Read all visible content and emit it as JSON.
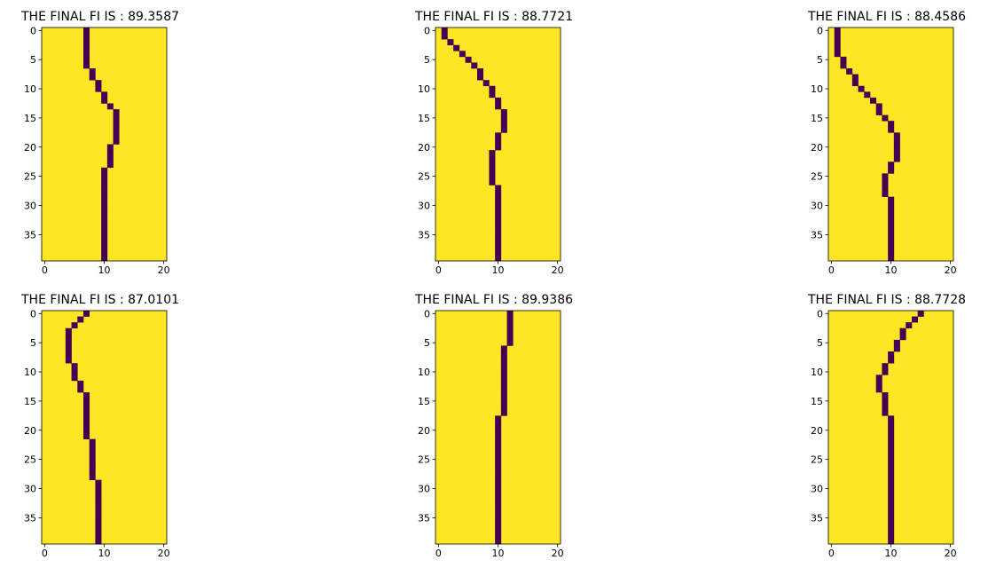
{
  "background_color": "#ffffff",
  "colors": {
    "path": "#440154",
    "field": "#fde725",
    "frame": "#000000",
    "text": "#000000"
  },
  "chart_data": [
    {
      "type": "heatmap",
      "title": "THE FINAL FI IS : 89.3587",
      "grid": false,
      "xlim": [
        -0.5,
        20.5
      ],
      "ylim": [
        39.5,
        -0.5
      ],
      "xticks": [
        0,
        10,
        20
      ],
      "yticks": [
        0,
        5,
        10,
        15,
        20,
        25,
        30,
        35
      ],
      "path_x": [
        7,
        7,
        7,
        7,
        7,
        7,
        7,
        8,
        8,
        9,
        9,
        10,
        10,
        11,
        12,
        12,
        12,
        12,
        12,
        12,
        11,
        11,
        11,
        11,
        10,
        10,
        10,
        10,
        10,
        10,
        10,
        10,
        10,
        10,
        10,
        10,
        10,
        10,
        10,
        10
      ]
    },
    {
      "type": "heatmap",
      "title": "THE FINAL FI IS : 88.7721",
      "grid": false,
      "xlim": [
        -0.5,
        20.5
      ],
      "ylim": [
        39.5,
        -0.5
      ],
      "xticks": [
        0,
        10,
        20
      ],
      "yticks": [
        0,
        5,
        10,
        15,
        20,
        25,
        30,
        35
      ],
      "path_x": [
        1,
        1,
        2,
        3,
        4,
        5,
        6,
        7,
        7,
        8,
        9,
        9,
        10,
        10,
        11,
        11,
        11,
        11,
        10,
        10,
        10,
        9,
        9,
        9,
        9,
        9,
        9,
        10,
        10,
        10,
        10,
        10,
        10,
        10,
        10,
        10,
        10,
        10,
        10,
        10
      ]
    },
    {
      "type": "heatmap",
      "title": "THE FINAL FI IS : 88.4586",
      "grid": false,
      "xlim": [
        -0.5,
        20.5
      ],
      "ylim": [
        39.5,
        -0.5
      ],
      "xticks": [
        0,
        10,
        20
      ],
      "yticks": [
        0,
        5,
        10,
        15,
        20,
        25,
        30,
        35
      ],
      "path_x": [
        1,
        1,
        1,
        1,
        1,
        2,
        2,
        3,
        4,
        4,
        5,
        6,
        7,
        8,
        8,
        9,
        10,
        10,
        11,
        11,
        11,
        11,
        11,
        10,
        10,
        9,
        9,
        9,
        9,
        10,
        10,
        10,
        10,
        10,
        10,
        10,
        10,
        10,
        10,
        10
      ]
    },
    {
      "type": "heatmap",
      "title": "THE FINAL FI IS : 87.0101",
      "grid": false,
      "xlim": [
        -0.5,
        20.5
      ],
      "ylim": [
        39.5,
        -0.5
      ],
      "xticks": [
        0,
        10,
        20
      ],
      "yticks": [
        0,
        5,
        10,
        15,
        20,
        25,
        30,
        35
      ],
      "path_x": [
        7,
        6,
        5,
        4,
        4,
        4,
        4,
        4,
        4,
        5,
        5,
        5,
        6,
        6,
        7,
        7,
        7,
        7,
        7,
        7,
        7,
        7,
        8,
        8,
        8,
        8,
        8,
        8,
        8,
        9,
        9,
        9,
        9,
        9,
        9,
        9,
        9,
        9,
        9,
        9
      ]
    },
    {
      "type": "heatmap",
      "title": "THE FINAL FI IS : 89.9386",
      "grid": false,
      "xlim": [
        -0.5,
        20.5
      ],
      "ylim": [
        39.5,
        -0.5
      ],
      "xticks": [
        0,
        10,
        20
      ],
      "yticks": [
        0,
        5,
        10,
        15,
        20,
        25,
        30,
        35
      ],
      "path_x": [
        12,
        12,
        12,
        12,
        12,
        12,
        11,
        11,
        11,
        11,
        11,
        11,
        11,
        11,
        11,
        11,
        11,
        11,
        10,
        10,
        10,
        10,
        10,
        10,
        10,
        10,
        10,
        10,
        10,
        10,
        10,
        10,
        10,
        10,
        10,
        10,
        10,
        10,
        10,
        10
      ]
    },
    {
      "type": "heatmap",
      "title": "THE FINAL FI IS : 88.7728",
      "grid": false,
      "xlim": [
        -0.5,
        20.5
      ],
      "ylim": [
        39.5,
        -0.5
      ],
      "xticks": [
        0,
        10,
        20
      ],
      "yticks": [
        0,
        5,
        10,
        15,
        20,
        25,
        30,
        35
      ],
      "path_x": [
        15,
        14,
        13,
        12,
        12,
        11,
        11,
        10,
        10,
        9,
        9,
        8,
        8,
        8,
        9,
        9,
        9,
        9,
        10,
        10,
        10,
        10,
        10,
        10,
        10,
        10,
        10,
        10,
        10,
        10,
        10,
        10,
        10,
        10,
        10,
        10,
        10,
        10,
        10,
        10
      ]
    }
  ]
}
